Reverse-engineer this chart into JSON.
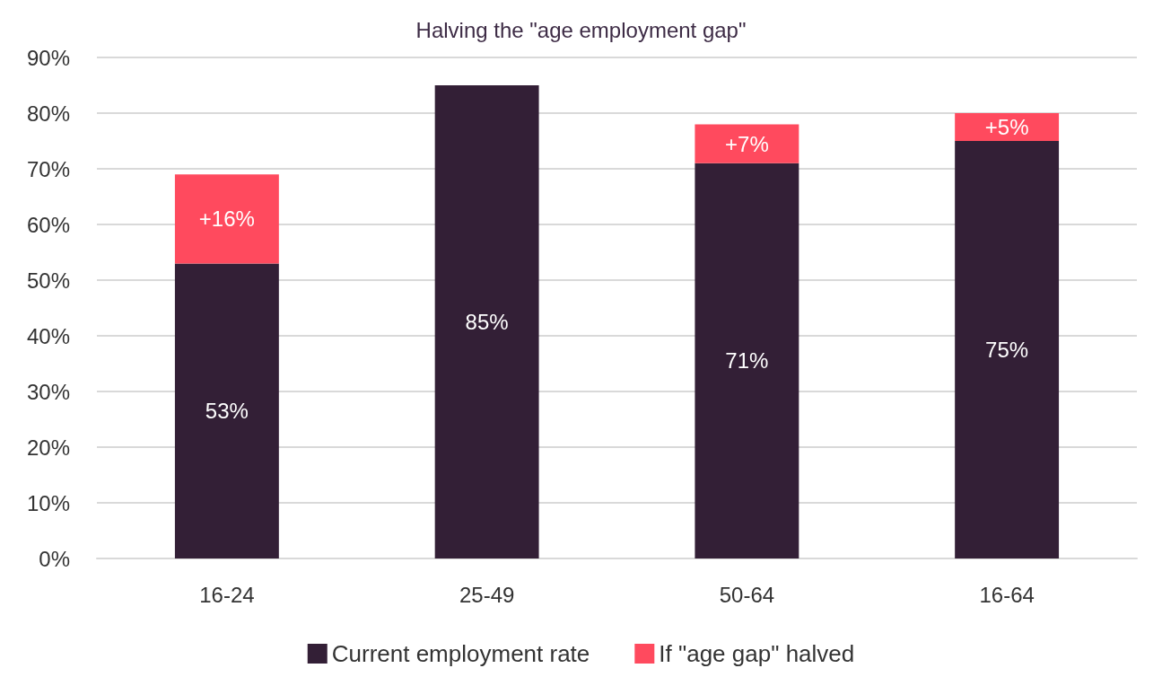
{
  "chart_data": {
    "type": "bar",
    "title": "Halving the \"age employment gap\"",
    "categories": [
      "16-24",
      "25-49",
      "50-64",
      "16-64"
    ],
    "stacked": true,
    "series": [
      {
        "name": "Current employment rate",
        "color": "#331f36",
        "values": [
          53,
          85,
          71,
          75
        ],
        "value_labels": [
          "53%",
          "85%",
          "71%",
          "75%"
        ]
      },
      {
        "name": "If \"age gap\" halved",
        "color": "#ff4a5e",
        "values": [
          16,
          null,
          7,
          5
        ],
        "value_labels": [
          "+16%",
          null,
          "+7%",
          "+5%"
        ]
      }
    ],
    "ylim": [
      0,
      90
    ],
    "yticks": [
      {
        "value": 0,
        "label": "0%"
      },
      {
        "value": 10,
        "label": "10%"
      },
      {
        "value": 20,
        "label": "20%"
      },
      {
        "value": 30,
        "label": "30%"
      },
      {
        "value": 40,
        "label": "40%"
      },
      {
        "value": 50,
        "label": "50%"
      },
      {
        "value": 60,
        "label": "60%"
      },
      {
        "value": 70,
        "label": "70%"
      },
      {
        "value": 80,
        "label": "80%"
      },
      {
        "value": 90,
        "label": "90%"
      }
    ],
    "grid": "y",
    "legend": "bottom"
  }
}
